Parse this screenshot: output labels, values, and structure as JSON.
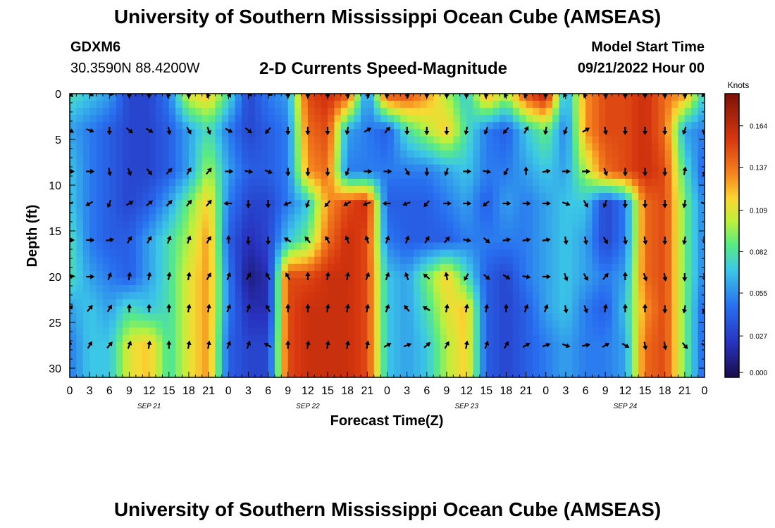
{
  "header": {
    "title": "University of Southern Mississippi Ocean Cube (AMSEAS)",
    "station_id": "GDXM6",
    "coordinates": "30.3590N  88.4200W",
    "subtitle": "2-D Currents Speed-Magnitude",
    "model_start_label": "Model Start Time",
    "model_start_value": "09/21/2022 Hour 00"
  },
  "footer": {
    "title": "University of Southern Mississippi Ocean Cube (AMSEAS)"
  },
  "chart_data": {
    "type": "heatmap",
    "title": "2-D Currents Speed-Magnitude",
    "xlabel": "Forecast Time(Z)",
    "ylabel": "Depth (ft)",
    "xlim": [
      0,
      96
    ],
    "ylim": [
      31,
      0
    ],
    "x_tick_labels": [
      "0",
      "3",
      "6",
      "9",
      "12",
      "15",
      "18",
      "21",
      "0",
      "3",
      "6",
      "9",
      "12",
      "15",
      "18",
      "21",
      "0",
      "3",
      "6",
      "9",
      "12",
      "15",
      "18",
      "21",
      "0",
      "3",
      "6",
      "9",
      "12",
      "15",
      "18",
      "21",
      "0"
    ],
    "date_labels": [
      {
        "label": "SEP 21",
        "hour": 12
      },
      {
        "label": "SEP 22",
        "hour": 36
      },
      {
        "label": "SEP 23",
        "hour": 60
      },
      {
        "label": "SEP 24",
        "hour": 84
      }
    ],
    "y_ticks": [
      0,
      5,
      10,
      15,
      20,
      25,
      30
    ],
    "colorbar": {
      "units": "Knots",
      "min": 0.0,
      "max": 0.185,
      "ticks": [
        "0.000",
        "0.027",
        "0.055",
        "0.082",
        "0.109",
        "0.137",
        "0.164"
      ]
    },
    "depths": [
      0,
      4,
      8.5,
      12,
      16,
      20,
      23.5,
      27.5
    ],
    "times": [
      0,
      3,
      6,
      9,
      12,
      15,
      18,
      21,
      24,
      27,
      30,
      33,
      36,
      39,
      42,
      45,
      48,
      51,
      54,
      57,
      60,
      63,
      66,
      69,
      72,
      75,
      78,
      81,
      84,
      87,
      90,
      93,
      96
    ],
    "speed": [
      [
        0.08,
        0.07,
        0.06,
        0.03,
        0.03,
        0.05,
        0.11,
        0.12,
        0.08,
        0.03,
        0.05,
        0.06,
        0.15,
        0.16,
        0.15,
        0.05,
        0.15,
        0.15,
        0.13,
        0.1,
        0.07,
        0.13,
        0.1,
        0.15,
        0.17,
        0.06,
        0.13,
        0.15,
        0.15,
        0.16,
        0.14,
        0.13,
        0.07
      ],
      [
        0.06,
        0.05,
        0.04,
        0.03,
        0.03,
        0.04,
        0.06,
        0.08,
        0.05,
        0.03,
        0.04,
        0.05,
        0.14,
        0.15,
        0.06,
        0.05,
        0.04,
        0.08,
        0.1,
        0.12,
        0.08,
        0.05,
        0.04,
        0.07,
        0.09,
        0.05,
        0.13,
        0.15,
        0.15,
        0.16,
        0.14,
        0.06,
        0.05
      ],
      [
        0.07,
        0.05,
        0.04,
        0.03,
        0.03,
        0.04,
        0.06,
        0.1,
        0.06,
        0.04,
        0.04,
        0.05,
        0.13,
        0.14,
        0.05,
        0.05,
        0.05,
        0.05,
        0.05,
        0.06,
        0.07,
        0.05,
        0.05,
        0.06,
        0.07,
        0.06,
        0.1,
        0.14,
        0.15,
        0.16,
        0.15,
        0.08,
        0.04
      ],
      [
        0.07,
        0.05,
        0.04,
        0.03,
        0.04,
        0.06,
        0.09,
        0.12,
        0.05,
        0.03,
        0.03,
        0.05,
        0.07,
        0.13,
        0.15,
        0.16,
        0.04,
        0.04,
        0.04,
        0.05,
        0.06,
        0.04,
        0.06,
        0.05,
        0.06,
        0.07,
        0.07,
        0.03,
        0.05,
        0.14,
        0.15,
        0.09,
        0.05
      ],
      [
        0.08,
        0.05,
        0.04,
        0.04,
        0.06,
        0.08,
        0.1,
        0.13,
        0.04,
        0.02,
        0.03,
        0.07,
        0.09,
        0.14,
        0.16,
        0.15,
        0.05,
        0.04,
        0.04,
        0.04,
        0.05,
        0.05,
        0.05,
        0.05,
        0.06,
        0.07,
        0.06,
        0.03,
        0.05,
        0.14,
        0.15,
        0.09,
        0.05
      ],
      [
        0.08,
        0.06,
        0.05,
        0.04,
        0.06,
        0.08,
        0.11,
        0.13,
        0.05,
        0.01,
        0.02,
        0.15,
        0.15,
        0.16,
        0.16,
        0.15,
        0.07,
        0.06,
        0.09,
        0.12,
        0.08,
        0.04,
        0.03,
        0.05,
        0.06,
        0.07,
        0.06,
        0.05,
        0.06,
        0.14,
        0.15,
        0.09,
        0.05
      ],
      [
        0.06,
        0.07,
        0.06,
        0.08,
        0.07,
        0.08,
        0.11,
        0.13,
        0.05,
        0.02,
        0.02,
        0.15,
        0.16,
        0.16,
        0.16,
        0.15,
        0.07,
        0.06,
        0.08,
        0.11,
        0.12,
        0.04,
        0.03,
        0.04,
        0.06,
        0.07,
        0.05,
        0.04,
        0.07,
        0.13,
        0.15,
        0.09,
        0.04
      ],
      [
        0.05,
        0.07,
        0.07,
        0.11,
        0.12,
        0.08,
        0.11,
        0.13,
        0.04,
        0.03,
        0.03,
        0.15,
        0.16,
        0.16,
        0.16,
        0.15,
        0.07,
        0.06,
        0.07,
        0.1,
        0.12,
        0.04,
        0.03,
        0.04,
        0.05,
        0.06,
        0.05,
        0.05,
        0.06,
        0.14,
        0.15,
        0.09,
        0.04
      ]
    ],
    "arrow_depths": [
      0,
      4,
      8.5,
      12,
      16,
      20,
      23.5,
      27.5
    ],
    "arrow_times": [
      0,
      3,
      6,
      9,
      12,
      15,
      18,
      21,
      24,
      27,
      30,
      33,
      36,
      39,
      42,
      45,
      48,
      51,
      54,
      57,
      60,
      63,
      66,
      69,
      72,
      75,
      78,
      81,
      84,
      87,
      90,
      93,
      96
    ],
    "arrow_directions_deg": [
      [
        135,
        120,
        100,
        180,
        180,
        200,
        180,
        200,
        150,
        120,
        110,
        180,
        180,
        180,
        170,
        160,
        190,
        170,
        180,
        180,
        180,
        190,
        200,
        200,
        190,
        210,
        200,
        170,
        180,
        180,
        180,
        170,
        220
      ],
      [
        120,
        110,
        180,
        130,
        120,
        170,
        150,
        160,
        120,
        130,
        220,
        180,
        180,
        180,
        190,
        60,
        40,
        180,
        180,
        180,
        190,
        200,
        220,
        30,
        190,
        200,
        60,
        170,
        180,
        180,
        180,
        200,
        190
      ],
      [
        90,
        90,
        170,
        160,
        140,
        45,
        30,
        40,
        90,
        100,
        110,
        180,
        180,
        180,
        200,
        90,
        90,
        150,
        180,
        200,
        90,
        100,
        210,
        0,
        80,
        90,
        90,
        160,
        180,
        180,
        180,
        10,
        190
      ],
      [
        250,
        240,
        200,
        60,
        50,
        45,
        40,
        40,
        270,
        180,
        180,
        250,
        200,
        220,
        240,
        250,
        270,
        250,
        220,
        90,
        90,
        230,
        90,
        90,
        90,
        110,
        150,
        200,
        180,
        180,
        180,
        190,
        110
      ],
      [
        90,
        90,
        80,
        30,
        30,
        20,
        20,
        30,
        0,
        180,
        180,
        300,
        320,
        330,
        340,
        340,
        20,
        20,
        30,
        40,
        100,
        130,
        80,
        80,
        80,
        170,
        170,
        150,
        170,
        170,
        180,
        190,
        170
      ],
      [
        80,
        90,
        20,
        10,
        10,
        10,
        10,
        30,
        20,
        30,
        330,
        330,
        0,
        10,
        10,
        20,
        20,
        340,
        310,
        350,
        210,
        130,
        120,
        100,
        90,
        160,
        150,
        40,
        0,
        160,
        170,
        180,
        170
      ],
      [
        40,
        40,
        30,
        0,
        0,
        0,
        10,
        10,
        20,
        20,
        330,
        0,
        0,
        10,
        10,
        10,
        20,
        320,
        300,
        10,
        10,
        10,
        0,
        20,
        20,
        170,
        160,
        10,
        0,
        0,
        180,
        190,
        200
      ],
      [
        0,
        30,
        40,
        20,
        10,
        0,
        10,
        10,
        20,
        20,
        300,
        0,
        10,
        10,
        10,
        10,
        60,
        70,
        50,
        30,
        10,
        20,
        30,
        60,
        70,
        110,
        80,
        60,
        120,
        170,
        170,
        140,
        120
      ]
    ]
  }
}
